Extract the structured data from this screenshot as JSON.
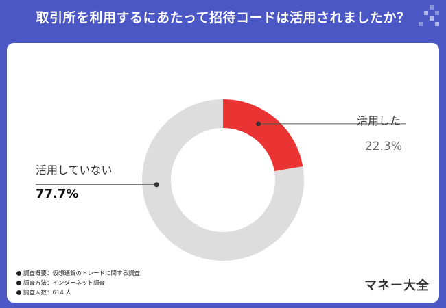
{
  "header": {
    "title": "取引所を利用するにあたって招待コードは活用されましたか？"
  },
  "chart_data": {
    "type": "pie",
    "title": "取引所を利用するにあたって招待コードは活用されましたか？",
    "categories": [
      "活用した",
      "活用していない"
    ],
    "values": [
      22.3,
      77.7
    ],
    "value_labels": [
      "22.3%",
      "77.7%"
    ],
    "colors": [
      "#ea3433",
      "#dddddd"
    ],
    "style": "donut"
  },
  "footnotes": [
    "調査概要：仮想通貨のトレードに関する調査",
    "調査方法：インターネット調査",
    "調査人数：614 人"
  ],
  "brand": "マネー大全",
  "colors": {
    "header_bg": "#4a57c5",
    "card_bg": "#ffffff",
    "accent": "#ea3433",
    "track": "#dddddd"
  }
}
